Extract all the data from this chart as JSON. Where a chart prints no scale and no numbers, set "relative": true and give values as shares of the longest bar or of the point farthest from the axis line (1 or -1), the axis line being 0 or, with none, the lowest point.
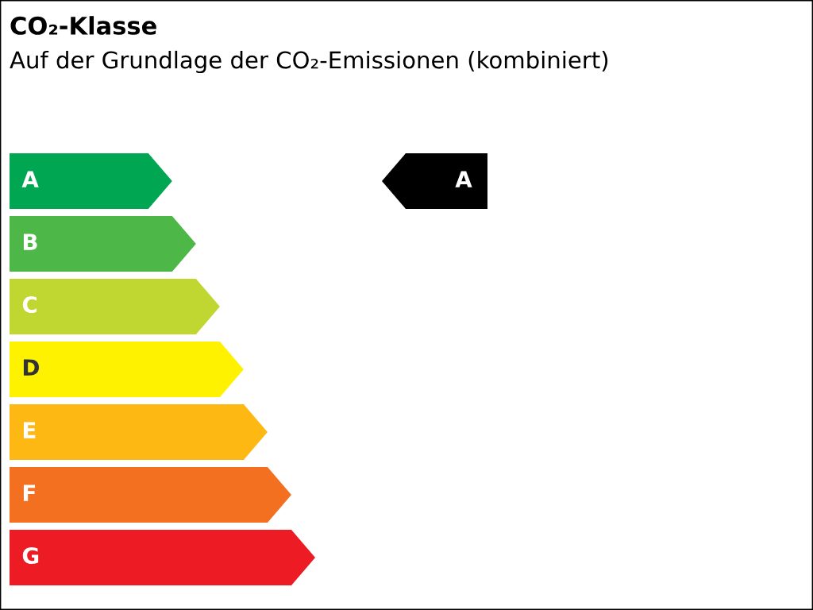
{
  "chart_data": {
    "type": "bar",
    "orientation": "horizontal",
    "relative": true,
    "title": "CO₂-Klasse",
    "subtitle": "Auf der Grundlage der CO₂-Emissionen (kombiniert)",
    "categories": [
      "A",
      "B",
      "C",
      "D",
      "E",
      "F",
      "G"
    ],
    "values": [
      0.532,
      0.61,
      0.688,
      0.766,
      0.844,
      0.922,
      1
    ],
    "colors": [
      "#00a651",
      "#4db848",
      "#bfd730",
      "#fff200",
      "#fdb813",
      "#f37021",
      "#ed1c24"
    ],
    "annotations": [
      "A"
    ]
  }
}
